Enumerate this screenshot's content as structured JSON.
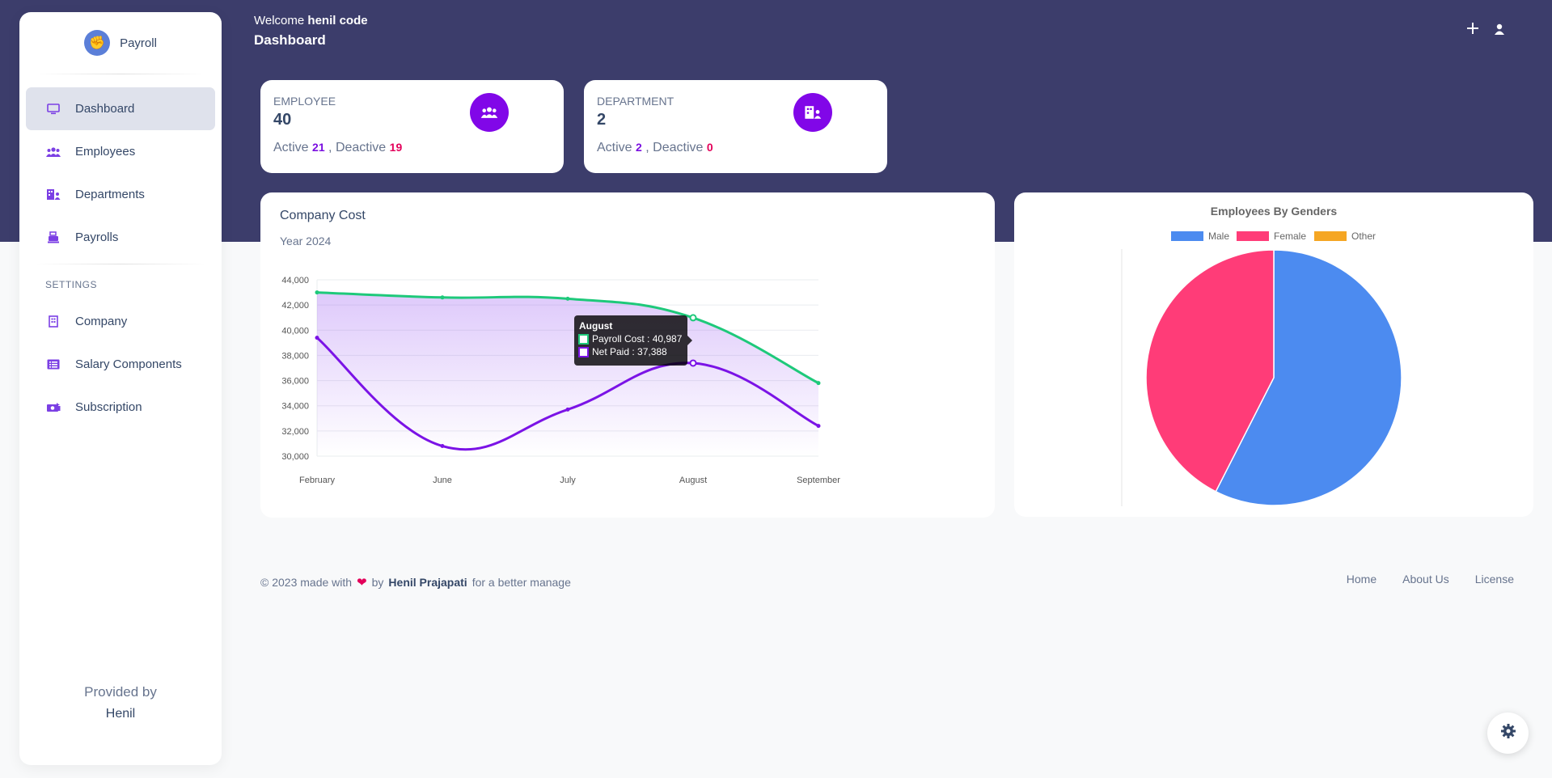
{
  "brand": {
    "name": "Payroll"
  },
  "sidebar": {
    "items": [
      {
        "label": "Dashboard",
        "icon": "monitor-icon"
      },
      {
        "label": "Employees",
        "icon": "users-icon"
      },
      {
        "label": "Departments",
        "icon": "building-icon"
      },
      {
        "label": "Payrolls",
        "icon": "cash-register-icon"
      }
    ],
    "settings_title": "SETTINGS",
    "settings_items": [
      {
        "label": "Company",
        "icon": "building-icon"
      },
      {
        "label": "Salary Components",
        "icon": "list-icon"
      },
      {
        "label": "Subscription",
        "icon": "money-icon"
      }
    ],
    "provided_by": "Provided by",
    "provider": "Henil"
  },
  "header": {
    "welcome_prefix": "Welcome ",
    "user": "henil code",
    "title": "Dashboard"
  },
  "cards": {
    "employee": {
      "label": "EMPLOYEE",
      "count": "40",
      "active_label": "Active",
      "active": "21",
      "sep": " , Deactive",
      "deactive": "19"
    },
    "department": {
      "label": "DEPARTMENT",
      "count": "2",
      "active_label": "Active",
      "active": "2",
      "sep": " , Deactive",
      "deactive": "0"
    }
  },
  "chart_data": [
    {
      "type": "line",
      "title": "Company Cost",
      "subtitle": "Year 2024",
      "categories": [
        "February",
        "June",
        "July",
        "August",
        "September"
      ],
      "ylim": [
        30000,
        44000
      ],
      "yticks": [
        "44,000",
        "42,000",
        "40,000",
        "38,000",
        "36,000",
        "34,000",
        "32,000",
        "30,000"
      ],
      "series": [
        {
          "name": "Payroll Cost",
          "color": "#1ec97a",
          "values": [
            43000,
            42600,
            42500,
            40987,
            35800
          ]
        },
        {
          "name": "Net Paid",
          "color": "#7b13e6",
          "values": [
            39400,
            30800,
            33700,
            37388,
            32400
          ]
        }
      ],
      "tooltip": {
        "title": "August",
        "lines": [
          "Payroll Cost : 40,987",
          "Net Paid : 37,388"
        ]
      }
    },
    {
      "type": "pie",
      "title": "Employees By Genders",
      "legend": [
        "Male",
        "Female",
        "Other"
      ],
      "colors": [
        "#4c8bf0",
        "#ff3c78",
        "#f5a623"
      ],
      "values": [
        23,
        17,
        0
      ]
    }
  ],
  "footer": {
    "prefix": "© 2023 made with",
    "by": "by",
    "author": "Henil Prajapati",
    "suffix": "for a better manage",
    "links": [
      "Home",
      "About Us",
      "License"
    ]
  }
}
